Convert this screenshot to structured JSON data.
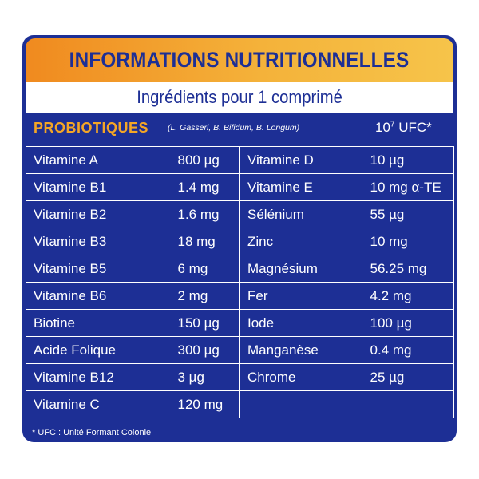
{
  "colors": {
    "panel_background": "#1d2f95",
    "header_gradient_start": "#f08a1f",
    "header_gradient_end": "#f6c44a",
    "probiotiques_label": "#f4a626",
    "text": "#ffffff"
  },
  "header": {
    "title": "INFORMATIONS NUTRITIONNELLES",
    "subtitle": "Ingrédients pour 1 comprimé"
  },
  "probiotiques": {
    "label": "PROBIOTIQUES",
    "strains": "(L. Gasseri, B. Bifidum, B. Longum)",
    "amount_base": "10",
    "amount_exponent": "7",
    "amount_unit": " UFC*"
  },
  "rows": [
    {
      "left_name": "Vitamine A",
      "left_value": "800 µg",
      "right_name": "Vitamine D",
      "right_value": "10 µg"
    },
    {
      "left_name": "Vitamine B1",
      "left_value": "1.4 mg",
      "right_name": "Vitamine E",
      "right_value": "10 mg α-TE"
    },
    {
      "left_name": "Vitamine B2",
      "left_value": "1.6 mg",
      "right_name": "Sélénium",
      "right_value": "55 µg"
    },
    {
      "left_name": "Vitamine B3",
      "left_value": "18 mg",
      "right_name": "Zinc",
      "right_value": "10 mg"
    },
    {
      "left_name": "Vitamine B5",
      "left_value": "6 mg",
      "right_name": "Magnésium",
      "right_value": "56.25 mg"
    },
    {
      "left_name": "Vitamine B6",
      "left_value": "2 mg",
      "right_name": "Fer",
      "right_value": "4.2 mg"
    },
    {
      "left_name": "Biotine",
      "left_value": "150 µg",
      "right_name": "Iode",
      "right_value": "100 µg"
    },
    {
      "left_name": "Acide Folique",
      "left_value": "300 µg",
      "right_name": "Manganèse",
      "right_value": "0.4 mg"
    },
    {
      "left_name": "Vitamine B12",
      "left_value": "3 µg",
      "right_name": "Chrome",
      "right_value": "25 µg"
    },
    {
      "left_name": "Vitamine C",
      "left_value": "120 mg",
      "right_name": "",
      "right_value": ""
    }
  ],
  "footnote": "* UFC : Unité Formant Colonie"
}
